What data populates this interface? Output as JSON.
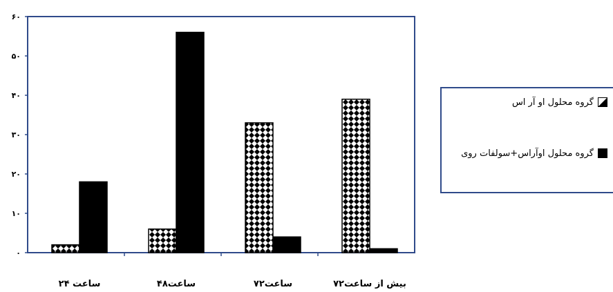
{
  "chart_data": {
    "type": "bar",
    "categories": [
      "ساعت ۲۴",
      "ساعت۴۸",
      "ساعت۷۲",
      "بیش از ساعت۷۲"
    ],
    "series": [
      {
        "name": "گروه محلول او آر اس",
        "values": [
          2,
          6,
          33,
          39
        ],
        "fill": "pattern"
      },
      {
        "name": "گروه محلول اوآراس+سولفات روی",
        "values": [
          18,
          56,
          4,
          1
        ],
        "fill": "solid"
      }
    ],
    "ylim": [
      0,
      60
    ],
    "yticks": [
      0,
      10,
      20,
      30,
      40,
      50,
      60
    ],
    "ytick_labels": [
      "۰",
      "۱۰",
      "۲۰",
      "۳۰",
      "۴۰",
      "۵۰",
      "۶۰"
    ],
    "legend_position": "right",
    "grid": false,
    "colors": {
      "axis": "#2f4a8a",
      "bar": "#000000",
      "pattern_bg": "#ffffff"
    }
  },
  "legend": {
    "items": [
      {
        "label": "گروه محلول او آر اس"
      },
      {
        "label": "گروه محلول اوآراس+سولفات روی"
      }
    ]
  }
}
